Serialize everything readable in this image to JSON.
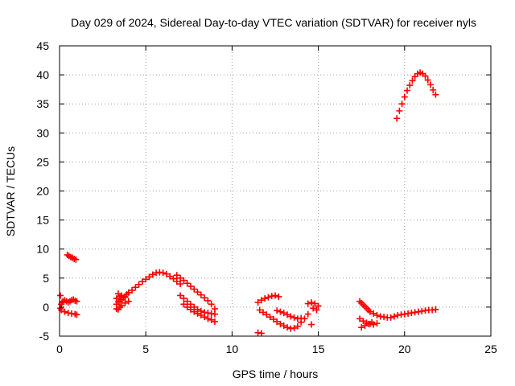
{
  "chart_data": {
    "type": "scatter",
    "title": "Day 029 of 2024, Sidereal Day-to-day VTEC variation (SDTVAR) for receiver nyls",
    "xlabel": "GPS time / hours",
    "ylabel": "SDTVAR / TECUs",
    "xlim": [
      0,
      25
    ],
    "ylim": [
      -5,
      45
    ],
    "x_ticks": [
      "0",
      "5",
      "10",
      "15",
      "20",
      "25"
    ],
    "y_ticks": [
      "-5",
      "0",
      "5",
      "10",
      "15",
      "20",
      "25",
      "30",
      "35",
      "40",
      "45"
    ],
    "grid": true,
    "marker": "plus",
    "series": [
      {
        "name": "SDTVAR",
        "color": "#ff0000",
        "x": [
          0.05,
          0.1,
          0.15,
          0.2,
          0.3,
          0.4,
          0.5,
          0.6,
          0.7,
          0.8,
          0.9,
          1.0,
          0.1,
          0.3,
          0.5,
          0.7,
          0.9,
          1.0,
          0.05,
          0.45,
          0.55,
          0.65,
          0.75,
          0.85,
          0.95,
          3.3,
          3.4,
          3.5,
          3.6,
          3.7,
          3.8,
          3.9,
          4.0,
          4.2,
          4.4,
          4.6,
          4.8,
          5.0,
          5.2,
          5.4,
          5.6,
          5.8,
          6.0,
          6.2,
          6.4,
          6.6,
          6.8,
          7.0,
          3.3,
          3.4,
          3.5,
          3.6,
          3.8,
          4.0,
          3.4,
          3.6,
          3.8,
          3.3,
          3.5,
          6.8,
          7.0,
          7.2,
          7.4,
          7.6,
          7.8,
          8.0,
          8.2,
          8.4,
          8.6,
          8.8,
          9.0,
          7.0,
          7.2,
          7.4,
          7.6,
          7.8,
          8.0,
          8.2,
          8.4,
          8.6,
          8.8,
          9.0,
          7.2,
          7.4,
          7.6,
          7.8,
          8.0,
          8.2,
          8.4,
          8.6,
          8.8,
          9.0,
          11.5,
          11.7,
          11.9,
          12.1,
          12.3,
          12.5,
          12.7,
          11.6,
          11.8,
          12.0,
          12.2,
          12.4,
          12.6,
          12.8,
          13.0,
          13.2,
          13.4,
          13.6,
          13.8,
          14.0,
          14.2,
          14.4,
          12.6,
          12.8,
          13.0,
          13.2,
          13.4,
          13.6,
          13.8,
          14.0,
          11.5,
          11.7,
          14.4,
          14.6,
          14.8,
          15.0,
          14.7,
          14.9,
          14.6,
          17.4,
          17.5,
          17.6,
          17.7,
          17.8,
          17.9,
          18.0,
          18.2,
          18.4,
          18.6,
          18.8,
          19.0,
          19.2,
          19.4,
          19.6,
          19.8,
          20.0,
          20.2,
          20.4,
          20.6,
          20.8,
          21.0,
          21.2,
          21.4,
          21.6,
          21.8,
          17.4,
          17.6,
          17.8,
          18.0,
          18.2,
          18.4,
          17.5,
          17.7,
          17.9,
          18.1,
          19.55,
          19.7,
          19.85,
          20.0,
          20.15,
          20.3,
          20.45,
          20.6,
          20.75,
          20.9,
          21.05,
          21.2,
          21.35,
          21.5,
          21.65,
          21.8
        ],
        "y": [
          -0.2,
          0.5,
          0.8,
          1.0,
          1.2,
          1.0,
          0.8,
          1.0,
          1.2,
          1.3,
          1.1,
          1.0,
          -0.5,
          -0.8,
          -1.0,
          -1.1,
          -1.2,
          -1.3,
          2.0,
          9.0,
          8.8,
          8.6,
          8.5,
          8.3,
          8.2,
          0.5,
          0.9,
          1.0,
          1.3,
          1.6,
          1.8,
          2.2,
          2.5,
          2.9,
          3.4,
          3.9,
          4.4,
          4.8,
          5.2,
          5.6,
          5.9,
          6.0,
          5.9,
          5.7,
          5.3,
          4.9,
          4.4,
          4.0,
          -0.3,
          -0.4,
          0.0,
          0.3,
          0.7,
          1.0,
          2.3,
          2.0,
          1.7,
          1.5,
          1.8,
          5.5,
          5.0,
          4.6,
          4.1,
          3.6,
          3.1,
          2.6,
          2.1,
          1.6,
          1.1,
          0.5,
          -0.3,
          2.0,
          1.5,
          1.0,
          0.5,
          0.0,
          -0.4,
          -0.7,
          -0.9,
          -1.0,
          -1.1,
          -1.2,
          0.5,
          0.0,
          -0.4,
          -0.8,
          -1.1,
          -1.4,
          -1.7,
          -2.0,
          -2.2,
          -2.5,
          0.8,
          1.2,
          1.5,
          1.7,
          1.9,
          2.0,
          1.8,
          -0.5,
          -0.9,
          -1.3,
          -1.7,
          -2.1,
          -2.5,
          -2.9,
          -3.2,
          -3.5,
          -3.7,
          -3.6,
          -3.3,
          -2.6,
          -2.0,
          -1.2,
          -0.6,
          -0.8,
          -1.0,
          -1.3,
          -1.6,
          -1.8,
          -2.0,
          -1.9,
          -4.4,
          -4.5,
          0.6,
          0.8,
          0.6,
          0.2,
          -0.2,
          -0.5,
          -3.0,
          1.0,
          0.7,
          0.4,
          0.1,
          -0.2,
          -0.5,
          -0.8,
          -1.1,
          -1.4,
          -1.6,
          -1.7,
          -1.8,
          -1.8,
          -1.6,
          -1.4,
          -1.3,
          -1.2,
          -1.1,
          -1.0,
          -0.9,
          -0.8,
          -0.7,
          -0.6,
          -0.5,
          -0.5,
          -0.4,
          -2.0,
          -2.4,
          -2.7,
          -2.9,
          -3.0,
          -2.8,
          -3.5,
          -3.2,
          -2.9,
          -2.6,
          32.5,
          33.8,
          35.0,
          36.2,
          37.3,
          38.2,
          39.0,
          39.7,
          40.2,
          40.4,
          40.2,
          39.8,
          39.1,
          38.3,
          37.4,
          36.6
        ]
      }
    ]
  }
}
